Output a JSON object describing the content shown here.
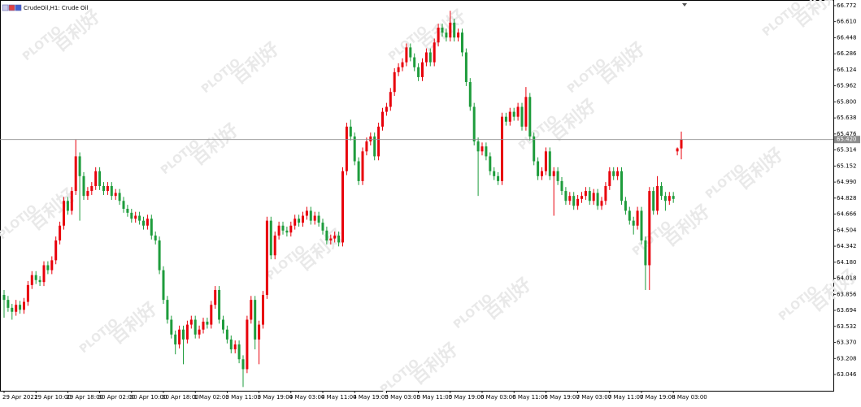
{
  "chart_data": {
    "type": "candlestick",
    "title": "CrudeOil,H1:  Crude Oil",
    "watermark": "百利好",
    "watermark_brand": "PLOTIO",
    "up_color": "#e8000b",
    "down_color": "#1e9c3c",
    "ylim": [
      62.882,
      66.829
    ],
    "yticks": [
      66.772,
      {
        "value": 66.61,
        "label": "66.610"
      },
      66.448,
      66.286,
      66.124,
      65.962,
      {
        "value": 65.8,
        "label": "65.800"
      },
      65.638,
      65.476,
      65.314,
      65.152,
      {
        "value": 64.99,
        "label": "64.990"
      },
      64.828,
      64.666,
      64.504,
      64.342,
      {
        "value": 64.18,
        "label": "64.180"
      },
      64.018,
      63.856,
      63.694,
      63.532,
      {
        "value": 63.37,
        "label": "63.370"
      },
      63.208,
      63.046
    ],
    "current_price": {
      "value": 65.42,
      "label": "65.420"
    },
    "categories": [
      "29 Apr 2021",
      null,
      null,
      null,
      null,
      null,
      null,
      null,
      "29 Apr 10:00",
      null,
      null,
      null,
      null,
      null,
      null,
      null,
      "29 Apr 18:00",
      null,
      null,
      null,
      null,
      null,
      null,
      null,
      "30 Apr 02:00",
      null,
      null,
      null,
      null,
      null,
      null,
      null,
      "30 Apr 10:00",
      null,
      null,
      null,
      null,
      null,
      null,
      null,
      "30 Apr 18:00",
      null,
      null,
      null,
      null,
      null,
      null,
      null,
      "1 May 02:00",
      null,
      null,
      null,
      null,
      null,
      null,
      null,
      "3 May 11:00",
      null,
      null,
      null,
      null,
      null,
      null,
      null,
      "3 May 19:00",
      null,
      null,
      null,
      null,
      null,
      null,
      null,
      "4 May 03:00",
      null,
      null,
      null,
      null,
      null,
      null,
      null,
      "4 May 11:00",
      null,
      null,
      null,
      null,
      null,
      null,
      null,
      "4 May 19:00",
      null,
      null,
      null,
      null,
      null,
      null,
      null,
      "5 May 03:00",
      null,
      null,
      null,
      null,
      null,
      null,
      null,
      "5 May 11:00",
      null,
      null,
      null,
      null,
      null,
      null,
      null,
      "5 May 19:00",
      null,
      null,
      null,
      null,
      null,
      null,
      null,
      "6 May 03:00",
      null,
      null,
      null,
      null,
      null,
      null,
      null,
      "6 May 11:00",
      null,
      null,
      null,
      null,
      null,
      null,
      null,
      "6 May 19:00",
      null,
      null,
      null,
      null,
      null,
      null,
      null,
      "7 May 03:00",
      null,
      null,
      null,
      null,
      null,
      null,
      null,
      "7 May 11:00",
      null,
      null,
      null,
      null,
      null,
      null,
      null,
      "7 May 19:00",
      null,
      null,
      null,
      null,
      null,
      null,
      null,
      "8 May 03:00",
      null,
      null
    ],
    "ohlc": [
      [
        63.85,
        63.9,
        63.62,
        63.8
      ],
      [
        63.8,
        63.84,
        63.68,
        63.72
      ],
      [
        63.72,
        63.76,
        63.6,
        63.68
      ],
      [
        63.68,
        63.8,
        63.64,
        63.75
      ],
      [
        63.75,
        63.79,
        63.66,
        63.7
      ],
      [
        63.7,
        63.82,
        63.66,
        63.78
      ],
      [
        63.78,
        63.99,
        63.74,
        63.95
      ],
      [
        63.95,
        64.09,
        63.91,
        64.05
      ],
      [
        64.05,
        64.09,
        63.96,
        64.0
      ],
      [
        64.0,
        64.04,
        63.94,
        63.98
      ],
      [
        63.98,
        64.19,
        63.94,
        64.15
      ],
      [
        64.15,
        64.19,
        64.06,
        64.1
      ],
      [
        64.1,
        64.24,
        64.06,
        64.2
      ],
      [
        64.2,
        64.44,
        64.16,
        64.4
      ],
      [
        64.4,
        64.59,
        64.36,
        64.55
      ],
      [
        64.55,
        64.84,
        64.51,
        64.8
      ],
      [
        64.8,
        64.84,
        64.66,
        64.7
      ],
      [
        64.7,
        64.94,
        64.66,
        64.9
      ],
      [
        64.9,
        65.42,
        64.86,
        65.25
      ],
      [
        65.25,
        65.29,
        64.6,
        65.05
      ],
      [
        65.05,
        65.09,
        64.81,
        64.85
      ],
      [
        64.85,
        64.94,
        64.81,
        64.9
      ],
      [
        64.9,
        64.99,
        64.86,
        64.95
      ],
      [
        64.95,
        65.14,
        64.91,
        65.1
      ],
      [
        65.1,
        65.14,
        64.91,
        64.95
      ],
      [
        64.95,
        64.99,
        64.86,
        64.9
      ],
      [
        64.9,
        64.99,
        64.86,
        64.95
      ],
      [
        64.95,
        64.99,
        64.81,
        64.85
      ],
      [
        64.85,
        64.92,
        64.81,
        64.88
      ],
      [
        64.88,
        64.92,
        64.76,
        64.8
      ],
      [
        64.8,
        64.84,
        64.68,
        64.72
      ],
      [
        64.72,
        64.76,
        64.64,
        64.68
      ],
      [
        64.68,
        64.72,
        64.58,
        64.62
      ],
      [
        64.62,
        64.69,
        64.58,
        64.65
      ],
      [
        64.65,
        64.69,
        64.56,
        64.6
      ],
      [
        64.6,
        64.64,
        64.51,
        64.55
      ],
      [
        64.55,
        64.66,
        64.51,
        64.62
      ],
      [
        64.62,
        64.66,
        64.41,
        64.45
      ],
      [
        64.45,
        64.49,
        64.36,
        64.4
      ],
      [
        64.4,
        64.44,
        64.06,
        64.1
      ],
      [
        64.1,
        64.14,
        63.76,
        63.8
      ],
      [
        63.8,
        63.84,
        63.56,
        63.6
      ],
      [
        63.6,
        63.64,
        63.41,
        63.45
      ],
      [
        63.45,
        63.49,
        63.25,
        63.35
      ],
      [
        63.35,
        63.54,
        63.31,
        63.5
      ],
      [
        63.5,
        63.54,
        63.15,
        63.4
      ],
      [
        63.4,
        63.59,
        63.36,
        63.55
      ],
      [
        63.55,
        63.64,
        63.51,
        63.6
      ],
      [
        63.6,
        63.64,
        63.41,
        63.45
      ],
      [
        63.45,
        63.54,
        63.41,
        63.5
      ],
      [
        63.5,
        63.62,
        63.46,
        63.58
      ],
      [
        63.58,
        63.62,
        63.51,
        63.55
      ],
      [
        63.55,
        63.79,
        63.51,
        63.75
      ],
      [
        63.75,
        63.94,
        63.71,
        63.9
      ],
      [
        63.9,
        63.94,
        63.56,
        63.6
      ],
      [
        63.6,
        63.64,
        63.46,
        63.5
      ],
      [
        63.5,
        63.54,
        63.36,
        63.4
      ],
      [
        63.4,
        63.44,
        63.26,
        63.3
      ],
      [
        63.3,
        63.39,
        63.26,
        63.35
      ],
      [
        63.35,
        63.39,
        63.16,
        63.2
      ],
      [
        63.2,
        63.24,
        62.92,
        63.1
      ],
      [
        63.1,
        63.64,
        63.06,
        63.6
      ],
      [
        63.6,
        63.84,
        63.56,
        63.8
      ],
      [
        63.8,
        63.84,
        63.3,
        63.4
      ],
      [
        63.4,
        63.59,
        63.15,
        63.55
      ],
      [
        63.55,
        63.89,
        63.51,
        63.85
      ],
      [
        63.85,
        64.64,
        63.81,
        64.6
      ],
      [
        64.6,
        64.64,
        64.21,
        64.25
      ],
      [
        64.25,
        64.49,
        64.21,
        64.45
      ],
      [
        64.45,
        64.59,
        64.41,
        64.55
      ],
      [
        64.55,
        64.59,
        64.46,
        64.5
      ],
      [
        64.5,
        64.54,
        64.44,
        64.48
      ],
      [
        64.48,
        64.59,
        64.44,
        64.55
      ],
      [
        64.55,
        64.66,
        64.51,
        64.62
      ],
      [
        64.62,
        64.66,
        64.54,
        64.58
      ],
      [
        64.58,
        64.69,
        64.54,
        64.65
      ],
      [
        64.65,
        64.74,
        64.61,
        64.7
      ],
      [
        64.7,
        64.74,
        64.56,
        64.6
      ],
      [
        64.6,
        64.69,
        64.56,
        64.65
      ],
      [
        64.65,
        64.69,
        64.54,
        64.58
      ],
      [
        64.58,
        64.62,
        64.46,
        64.5
      ],
      [
        64.5,
        64.54,
        64.36,
        64.4
      ],
      [
        64.4,
        64.46,
        64.36,
        64.42
      ],
      [
        64.42,
        64.49,
        64.38,
        64.45
      ],
      [
        64.45,
        64.49,
        64.34,
        64.38
      ],
      [
        64.38,
        65.14,
        64.34,
        65.1
      ],
      [
        65.1,
        65.59,
        65.06,
        65.55
      ],
      [
        65.55,
        65.62,
        65.41,
        65.45
      ],
      [
        65.45,
        65.49,
        65.16,
        65.2
      ],
      [
        65.2,
        65.24,
        64.96,
        65.0
      ],
      [
        65.0,
        65.34,
        64.96,
        65.3
      ],
      [
        65.3,
        65.44,
        65.26,
        65.4
      ],
      [
        65.4,
        65.49,
        65.36,
        65.45
      ],
      [
        65.45,
        65.49,
        65.21,
        65.25
      ],
      [
        65.25,
        65.59,
        65.21,
        65.55
      ],
      [
        65.55,
        65.74,
        65.51,
        65.7
      ],
      [
        65.7,
        65.79,
        65.66,
        65.75
      ],
      [
        65.75,
        65.94,
        65.71,
        65.9
      ],
      [
        65.9,
        66.14,
        65.86,
        66.1
      ],
      [
        66.1,
        66.19,
        66.06,
        66.15
      ],
      [
        66.15,
        66.24,
        66.11,
        66.2
      ],
      [
        66.2,
        66.39,
        66.16,
        66.35
      ],
      [
        66.35,
        66.39,
        66.21,
        66.25
      ],
      [
        66.25,
        66.29,
        66.11,
        66.15
      ],
      [
        66.15,
        66.19,
        66.01,
        66.05
      ],
      [
        66.05,
        66.24,
        66.01,
        66.2
      ],
      [
        66.2,
        66.34,
        66.16,
        66.3
      ],
      [
        66.3,
        66.34,
        66.16,
        66.2
      ],
      [
        66.2,
        66.44,
        66.16,
        66.4
      ],
      [
        66.4,
        66.59,
        66.36,
        66.55
      ],
      [
        66.55,
        66.59,
        66.46,
        66.5
      ],
      [
        66.5,
        66.54,
        66.41,
        66.45
      ],
      [
        66.45,
        66.72,
        66.41,
        66.6
      ],
      [
        66.6,
        66.64,
        66.41,
        66.45
      ],
      [
        66.45,
        66.54,
        66.41,
        66.5
      ],
      [
        66.5,
        66.54,
        66.26,
        66.3
      ],
      [
        66.3,
        66.34,
        65.96,
        66.0
      ],
      [
        66.0,
        66.04,
        65.71,
        65.75
      ],
      [
        65.75,
        65.79,
        65.36,
        65.4
      ],
      [
        65.4,
        65.44,
        64.85,
        65.3
      ],
      [
        65.3,
        65.39,
        65.26,
        65.35
      ],
      [
        65.35,
        65.39,
        65.21,
        65.25
      ],
      [
        65.25,
        65.29,
        65.06,
        65.1
      ],
      [
        65.1,
        65.14,
        65.01,
        65.05
      ],
      [
        65.05,
        65.09,
        64.96,
        65.0
      ],
      [
        65.0,
        65.69,
        64.96,
        65.65
      ],
      [
        65.65,
        65.69,
        65.56,
        65.6
      ],
      [
        65.6,
        65.74,
        65.56,
        65.7
      ],
      [
        65.7,
        65.74,
        65.61,
        65.65
      ],
      [
        65.65,
        65.79,
        65.61,
        65.75
      ],
      [
        65.75,
        65.79,
        65.51,
        65.55
      ],
      [
        65.55,
        65.95,
        65.51,
        65.85
      ],
      [
        65.85,
        65.89,
        65.41,
        65.45
      ],
      [
        65.45,
        65.49,
        65.16,
        65.2
      ],
      [
        65.2,
        65.24,
        65.01,
        65.05
      ],
      [
        65.05,
        65.14,
        65.01,
        65.1
      ],
      [
        65.1,
        65.34,
        65.06,
        65.3
      ],
      [
        65.3,
        65.34,
        65.01,
        65.05
      ],
      [
        65.05,
        65.14,
        64.65,
        65.1
      ],
      [
        65.1,
        65.14,
        64.96,
        65.0
      ],
      [
        65.0,
        65.04,
        64.86,
        64.9
      ],
      [
        64.9,
        64.94,
        64.76,
        64.8
      ],
      [
        64.8,
        64.89,
        64.76,
        64.85
      ],
      [
        64.85,
        64.89,
        64.71,
        64.75
      ],
      [
        64.75,
        64.86,
        64.71,
        64.82
      ],
      [
        64.82,
        64.89,
        64.78,
        64.85
      ],
      [
        64.85,
        64.94,
        64.81,
        64.9
      ],
      [
        64.9,
        64.94,
        64.76,
        64.8
      ],
      [
        64.8,
        64.92,
        64.76,
        64.88
      ],
      [
        64.88,
        64.92,
        64.71,
        64.75
      ],
      [
        64.75,
        64.84,
        64.71,
        64.8
      ],
      [
        64.8,
        64.99,
        64.76,
        64.95
      ],
      [
        64.95,
        65.14,
        64.91,
        65.1
      ],
      [
        65.1,
        65.14,
        65.01,
        65.05
      ],
      [
        65.05,
        65.14,
        65.01,
        65.1
      ],
      [
        65.1,
        65.14,
        64.76,
        64.8
      ],
      [
        64.8,
        64.84,
        64.66,
        64.7
      ],
      [
        64.7,
        64.74,
        64.56,
        64.6
      ],
      [
        64.6,
        64.64,
        64.46,
        64.55
      ],
      [
        64.55,
        64.74,
        64.51,
        64.7
      ],
      [
        64.7,
        64.74,
        64.36,
        64.4
      ],
      [
        64.4,
        64.44,
        63.9,
        64.15
      ],
      [
        64.15,
        64.94,
        63.9,
        64.9
      ],
      [
        64.9,
        64.94,
        64.66,
        64.7
      ],
      [
        64.7,
        65.05,
        64.66,
        64.95
      ],
      [
        64.95,
        64.99,
        64.81,
        64.85
      ],
      [
        64.85,
        64.89,
        64.7,
        64.8
      ],
      [
        64.8,
        64.89,
        64.76,
        64.85
      ],
      [
        64.85,
        64.89,
        64.78,
        64.82
      ],
      [
        65.3,
        65.34,
        65.26,
        65.33
      ],
      [
        65.33,
        65.5,
        65.22,
        65.42
      ]
    ]
  }
}
